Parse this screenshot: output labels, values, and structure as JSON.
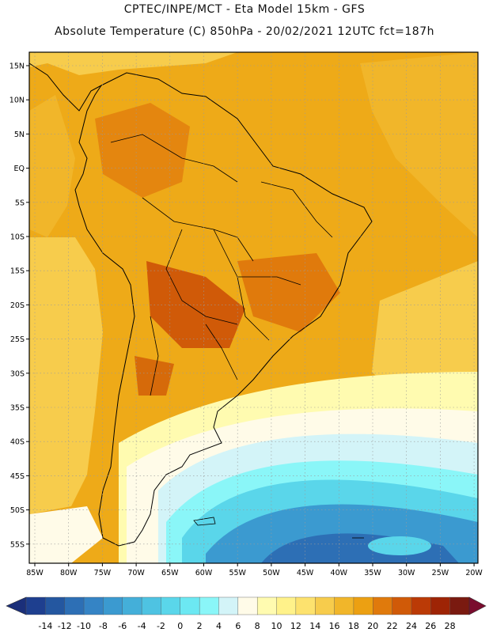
{
  "header": {
    "title_line1": "CPTEC/INPE/MCT -  Eta Model 15km - GFS",
    "title_line2": "Absolute Temperature (C) 850hPa - 20/02/2021 12UTC fct=187h"
  },
  "map": {
    "lat_labels": [
      "15N",
      "10N",
      "5N",
      "EQ",
      "5S",
      "10S",
      "15S",
      "20S",
      "25S",
      "30S",
      "35S",
      "40S",
      "45S",
      "50S",
      "55S"
    ],
    "lon_labels": [
      "85W",
      "80W",
      "75W",
      "70W",
      "65W",
      "60W",
      "55W",
      "50W",
      "45W",
      "40W",
      "35W",
      "30W",
      "25W",
      "20W"
    ],
    "background_color": "#eeaa18"
  },
  "legend": {
    "labels": [
      "-14",
      "-12",
      "-10",
      "-8",
      "-6",
      "-4",
      "-2",
      "0",
      "2",
      "4",
      "6",
      "8",
      "10",
      "12",
      "14",
      "16",
      "18",
      "20",
      "22",
      "24",
      "26",
      "28"
    ],
    "colors": [
      "#1e3f8f",
      "#2457a0",
      "#2d6fb5",
      "#3584c5",
      "#3b9ad0",
      "#44afd9",
      "#4ec3e2",
      "#5ad6ea",
      "#6ce8f2",
      "#8af6f8",
      "#d3f4f8",
      "#fffbe8",
      "#fffbb0",
      "#fff28a",
      "#fde26e",
      "#f7cc4c",
      "#f1b62a",
      "#eca012",
      "#e07a0c",
      "#d05a08",
      "#bb3a06",
      "#9e2405",
      "#7a1a10"
    ],
    "arrow_left_color": "#1b2f7a",
    "arrow_right_color": "#7a0c2e"
  }
}
